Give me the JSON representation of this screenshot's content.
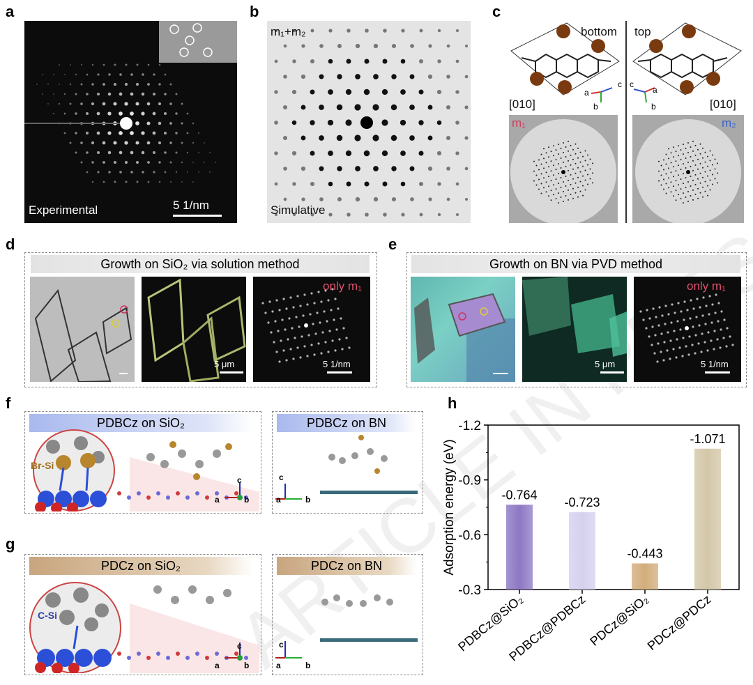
{
  "panels": {
    "a": {
      "label": "a",
      "caption": "Experimental",
      "scale": "5 1/nm"
    },
    "b": {
      "label": "b",
      "title": "m₁+m₂",
      "caption": "Simulative"
    },
    "c": {
      "label": "c",
      "bottom": "bottom",
      "top": "top",
      "dir_left": "[010]",
      "dir_right": "[010]",
      "m1": "m₁",
      "m2": "m₂",
      "axis_a": "a",
      "axis_b": "b",
      "axis_c": "c"
    },
    "d": {
      "label": "d",
      "header": "Growth on SiO₂ via solution method",
      "scale_um": "5 μm",
      "scale_nm": "5 1/nm",
      "only": "only m₁"
    },
    "e": {
      "label": "e",
      "header": "Growth on BN via PVD method",
      "scale_um": "5 μm",
      "scale_nm": "5 1/nm",
      "only": "only m₁"
    },
    "f": {
      "label": "f",
      "left_header": "PDBCz on SiO₂",
      "right_header": "PDBCz on BN",
      "bond": "Br-Si",
      "ax_a": "a",
      "ax_b": "b",
      "ax_c": "c"
    },
    "g": {
      "label": "g",
      "left_header": "PDCz on SiO₂",
      "right_header": "PDCz on BN",
      "bond": "C-Si",
      "ax_a": "a",
      "ax_b": "b",
      "ax_c": "c"
    },
    "h": {
      "label": "h"
    }
  },
  "watermark": "ARTICLE IN PRESS",
  "chart_data": {
    "type": "bar",
    "ylabel": "Adsorption energy (eV)",
    "xlabel": "",
    "categories": [
      "PDBCz@SiO₂",
      "PDBCz@PDBCz",
      "PDCz@SiO₂",
      "PDCz@PDCz"
    ],
    "values": [
      -0.764,
      -0.723,
      -0.443,
      -1.071
    ],
    "value_labels": [
      "-0.764",
      "-0.723",
      "-0.443",
      "-1.071"
    ],
    "colors": [
      "#8d78c4",
      "#d6d0ef",
      "#d2ad7c",
      "#d3c7a8"
    ],
    "ylim": [
      -0.3,
      -1.2
    ],
    "yticks": [
      -1.2,
      -0.9,
      -0.6,
      -0.3
    ],
    "ytick_labels": [
      "-1.2",
      "-0.9",
      "-0.6",
      "-0.3"
    ],
    "axis_reversed": true,
    "grid": false
  }
}
